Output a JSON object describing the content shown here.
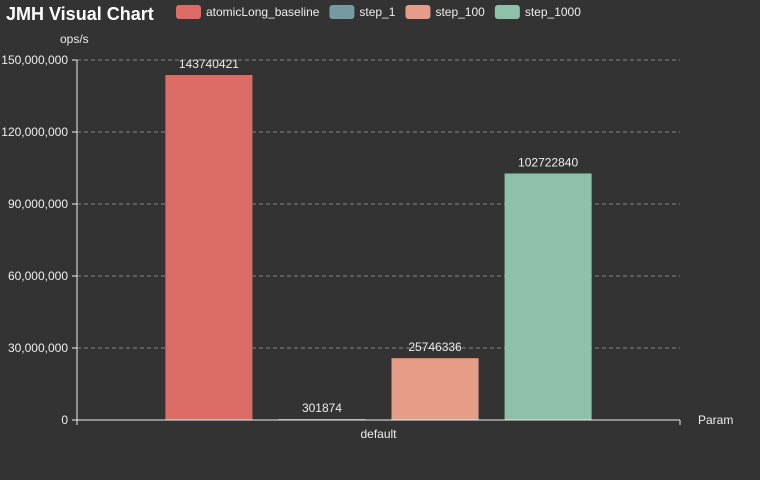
{
  "chart_data": {
    "type": "bar",
    "title": "JMH Visual Chart",
    "xlabel": "Param",
    "ylabel": "ops/s",
    "categories": [
      "default"
    ],
    "series": [
      {
        "name": "atomicLong_baseline",
        "values": [
          143740421
        ],
        "label": "143740421",
        "color": "#dd6b66"
      },
      {
        "name": "step_1",
        "values": [
          301874
        ],
        "label": "301874",
        "color": "#759aa0"
      },
      {
        "name": "step_100",
        "values": [
          25746336
        ],
        "label": "25746336",
        "color": "#e69d87"
      },
      {
        "name": "step_1000",
        "values": [
          102722840
        ],
        "label": "102722840",
        "color": "#8dc1a9"
      }
    ],
    "ylim": [
      0,
      150000000
    ],
    "yticks": [
      0,
      30000000,
      60000000,
      90000000,
      120000000,
      150000000
    ],
    "ytick_labels": [
      "0",
      "30,000,000",
      "60,000,000",
      "90,000,000",
      "120,000,000",
      "150,000,000"
    ],
    "grid": true,
    "legend_position": "top"
  }
}
